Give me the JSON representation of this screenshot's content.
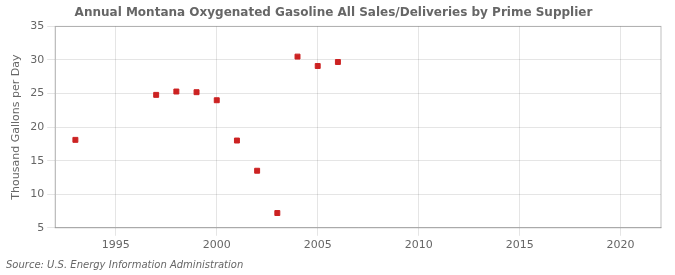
{
  "chart_data": {
    "type": "scatter",
    "title": "Annual Montana Oxygenated Gasoline All Sales/Deliveries by Prime Supplier",
    "y_label": "Thousand Gallons per Day",
    "annotations": [
      "Source: U.S. Energy Information Administration"
    ],
    "x": [
      1993,
      1997,
      1998,
      1999,
      2000,
      2001,
      2002,
      2003,
      2004,
      2005,
      2006
    ],
    "values": [
      18.1,
      24.8,
      25.3,
      25.2,
      24.0,
      18.0,
      13.5,
      7.2,
      30.5,
      29.1,
      29.7
    ],
    "color": "#cc2222",
    "marker": "square",
    "xlim": [
      1992,
      2022
    ],
    "ylim": [
      5,
      35
    ],
    "xticks": [
      1995,
      2000,
      2005,
      2010,
      2015,
      2020
    ],
    "yticks": [
      5,
      10,
      15,
      20,
      25,
      30,
      35
    ],
    "grid": true
  }
}
